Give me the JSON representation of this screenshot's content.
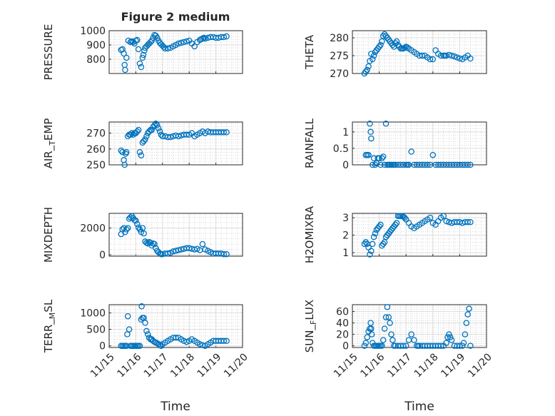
{
  "figure": {
    "title": "Figure 2 medium",
    "xlabel": "Time",
    "x_tick_labels": [
      "11/15",
      "11/16",
      "11/17",
      "11/18",
      "11/19",
      "11/20"
    ]
  },
  "chart_data": [
    {
      "type": "scatter",
      "ylabel": "PRESSURE",
      "ylim": [
        700,
        1000
      ],
      "yticks": [
        800,
        900,
        1000
      ],
      "x_range_days": [
        15,
        20
      ],
      "grid": true,
      "marker": "circle",
      "color": "#0072BD",
      "x": [
        15.45,
        15.5,
        15.55,
        15.58,
        15.6,
        15.65,
        15.72,
        15.8,
        15.85,
        15.9,
        15.95,
        16.0,
        16.05,
        16.1,
        16.15,
        16.2,
        16.25,
        16.28,
        16.32,
        16.35,
        16.4,
        16.45,
        16.5,
        16.55,
        16.6,
        16.65,
        16.7,
        16.75,
        16.8,
        16.85,
        16.9,
        16.95,
        17.0,
        17.05,
        17.1,
        17.2,
        17.3,
        17.4,
        17.5,
        17.6,
        17.7,
        17.8,
        17.9,
        18.0,
        18.1,
        18.2,
        18.3,
        18.4,
        18.45,
        18.5,
        18.55,
        18.6,
        18.7,
        18.8,
        18.9,
        19.0,
        19.1,
        19.2,
        19.3,
        19.4
      ],
      "y": [
        865,
        870,
        840,
        760,
        725,
        810,
        930,
        920,
        925,
        920,
        910,
        930,
        935,
        870,
        770,
        745,
        810,
        830,
        860,
        880,
        890,
        900,
        910,
        920,
        930,
        950,
        970,
        965,
        950,
        930,
        915,
        905,
        895,
        885,
        875,
        875,
        880,
        890,
        900,
        910,
        915,
        920,
        925,
        930,
        910,
        890,
        920,
        935,
        940,
        945,
        950,
        945,
        950,
        955,
        955,
        950,
        950,
        955,
        955,
        960
      ]
    },
    {
      "type": "scatter",
      "ylabel": "THETA",
      "ylim": [
        270,
        282
      ],
      "yticks": [
        270,
        275,
        280
      ],
      "x_range_days": [
        15,
        20
      ],
      "grid": true,
      "marker": "circle",
      "color": "#0072BD",
      "x": [
        15.45,
        15.5,
        15.55,
        15.6,
        15.65,
        15.7,
        15.75,
        15.8,
        15.85,
        15.9,
        15.95,
        16.0,
        16.05,
        16.1,
        16.15,
        16.2,
        16.25,
        16.3,
        16.35,
        16.4,
        16.45,
        16.5,
        16.55,
        16.6,
        16.65,
        16.7,
        16.75,
        16.8,
        16.85,
        16.9,
        16.95,
        17.0,
        17.05,
        17.1,
        17.2,
        17.3,
        17.4,
        17.5,
        17.6,
        17.7,
        17.8,
        17.9,
        18.0,
        18.1,
        18.2,
        18.3,
        18.4,
        18.45,
        18.5,
        18.6,
        18.7,
        18.8,
        18.9,
        19.0,
        19.1,
        19.2,
        19.3,
        19.4
      ],
      "y": [
        270,
        270.5,
        271,
        272,
        273.5,
        275.5,
        274,
        275,
        276,
        276.5,
        277,
        277.5,
        278,
        279,
        280.5,
        281,
        280.5,
        280,
        279.5,
        279,
        278.5,
        278,
        277.5,
        278.5,
        279,
        278,
        277.5,
        277,
        277,
        277,
        277.2,
        277.5,
        277.3,
        277,
        276.5,
        276,
        275.5,
        275,
        275,
        275,
        274.5,
        274,
        274,
        276.5,
        275.5,
        275,
        275,
        275,
        275,
        275.2,
        275,
        274.8,
        274.5,
        274.2,
        274,
        274.5,
        275,
        274.2
      ]
    },
    {
      "type": "scatter",
      "ylabel": "AIR_TEMP",
      "ylim": [
        250,
        277
      ],
      "yticks": [
        250,
        260,
        270
      ],
      "x_range_days": [
        15,
        20
      ],
      "grid": true,
      "marker": "circle",
      "color": "#0072BD",
      "x": [
        15.45,
        15.5,
        15.55,
        15.58,
        15.62,
        15.65,
        15.7,
        15.75,
        15.8,
        15.85,
        15.9,
        15.95,
        16.0,
        16.05,
        16.1,
        16.15,
        16.2,
        16.25,
        16.3,
        16.35,
        16.4,
        16.45,
        16.5,
        16.55,
        16.6,
        16.65,
        16.7,
        16.75,
        16.8,
        16.85,
        16.9,
        16.95,
        17.0,
        17.1,
        17.2,
        17.3,
        17.4,
        17.5,
        17.6,
        17.7,
        17.8,
        17.9,
        18.0,
        18.1,
        18.2,
        18.3,
        18.4,
        18.5,
        18.6,
        18.7,
        18.8,
        18.9,
        19.0,
        19.1,
        19.2,
        19.3,
        19.4
      ],
      "y": [
        259,
        258,
        253,
        250,
        257,
        258,
        268,
        269,
        269,
        270,
        269,
        270,
        270,
        271,
        272,
        258,
        256,
        264,
        265,
        266,
        268,
        270,
        271,
        272,
        272,
        274,
        275,
        276,
        275,
        273,
        271,
        269,
        268,
        268,
        267.5,
        267.5,
        268,
        268.5,
        268,
        268.5,
        269,
        269,
        269,
        270,
        268,
        269,
        270,
        271,
        270,
        271,
        270.5,
        270.5,
        270.5,
        270.5,
        270.5,
        270.5,
        270.5
      ]
    },
    {
      "type": "scatter",
      "ylabel": "RAINFALL",
      "ylim": [
        0,
        1.3
      ],
      "yticks": [
        0,
        0.5,
        1
      ],
      "x_range_days": [
        15,
        20
      ],
      "grid": true,
      "marker": "circle",
      "color": "#0072BD",
      "x": [
        15.5,
        15.55,
        15.6,
        15.65,
        15.68,
        15.7,
        15.75,
        15.8,
        15.85,
        15.9,
        15.95,
        16.0,
        16.05,
        16.1,
        16.15,
        16.2,
        16.25,
        16.3,
        16.35,
        16.4,
        16.45,
        16.5,
        16.55,
        16.6,
        16.7,
        16.8,
        16.9,
        17.0,
        17.05,
        17.1,
        17.2,
        17.3,
        17.4,
        17.5,
        17.6,
        17.7,
        17.8,
        17.9,
        18.0,
        18.1,
        18.2,
        18.3,
        18.4,
        18.5,
        18.6,
        18.7,
        18.8,
        18.9,
        19.0,
        19.1,
        19.2,
        19.3,
        19.4
      ],
      "y": [
        0.3,
        0.3,
        0.3,
        1.25,
        1.0,
        0.8,
        0,
        0.2,
        0,
        0.05,
        0.2,
        0.2,
        0,
        0.2,
        0.25,
        0,
        1.25,
        0,
        0,
        0,
        0,
        0,
        0,
        0,
        0,
        0,
        0,
        0,
        0,
        0,
        0.4,
        0,
        0,
        0,
        0,
        0,
        0,
        0,
        0.3,
        0,
        0,
        0,
        0,
        0,
        0,
        0,
        0,
        0,
        0,
        0,
        0,
        0,
        0
      ]
    },
    {
      "type": "scatter",
      "ylabel": "MIXDEPTH",
      "ylim": [
        -100,
        3100
      ],
      "yticks": [
        0,
        2000
      ],
      "x_range_days": [
        15,
        20
      ],
      "grid": true,
      "marker": "circle",
      "color": "#0072BD",
      "x": [
        15.45,
        15.5,
        15.55,
        15.6,
        15.65,
        15.7,
        15.75,
        15.8,
        15.85,
        15.9,
        15.95,
        16.0,
        16.05,
        16.1,
        16.15,
        16.2,
        16.25,
        16.3,
        16.35,
        16.4,
        16.45,
        16.5,
        16.55,
        16.6,
        16.65,
        16.7,
        16.75,
        16.8,
        16.85,
        16.9,
        16.95,
        17.0,
        17.1,
        17.2,
        17.3,
        17.4,
        17.5,
        17.6,
        17.7,
        17.8,
        17.9,
        18.0,
        18.1,
        18.2,
        18.3,
        18.4,
        18.5,
        18.6,
        18.7,
        18.8,
        18.9,
        19.0,
        19.1,
        19.2,
        19.3,
        19.4
      ],
      "y": [
        1550,
        1900,
        2000,
        1700,
        1900,
        2000,
        2700,
        2800,
        2900,
        2750,
        2600,
        2550,
        2300,
        2050,
        1900,
        1700,
        2000,
        1600,
        1000,
        900,
        850,
        950,
        900,
        700,
        850,
        800,
        500,
        300,
        200,
        100,
        50,
        50,
        100,
        100,
        150,
        250,
        300,
        350,
        400,
        450,
        500,
        500,
        450,
        400,
        450,
        350,
        800,
        400,
        300,
        200,
        100,
        100,
        100,
        100,
        50,
        50
      ]
    },
    {
      "type": "scatter",
      "ylabel": "H2OMIXRA",
      "ylim": [
        0.8,
        3.25
      ],
      "yticks": [
        1,
        2,
        3
      ],
      "x_range_days": [
        15,
        20
      ],
      "grid": true,
      "marker": "circle",
      "color": "#0072BD",
      "x": [
        15.45,
        15.5,
        15.55,
        15.6,
        15.65,
        15.7,
        15.75,
        15.8,
        15.85,
        15.9,
        15.95,
        16.0,
        16.05,
        16.1,
        16.15,
        16.2,
        16.25,
        16.3,
        16.35,
        16.4,
        16.45,
        16.5,
        16.55,
        16.6,
        16.65,
        16.7,
        16.75,
        16.8,
        16.85,
        16.9,
        16.95,
        17.0,
        17.1,
        17.2,
        17.3,
        17.4,
        17.5,
        17.6,
        17.7,
        17.8,
        17.9,
        18.0,
        18.1,
        18.2,
        18.3,
        18.4,
        18.5,
        18.6,
        18.7,
        18.8,
        18.9,
        19.0,
        19.1,
        19.2,
        19.3,
        19.4
      ],
      "y": [
        1.5,
        1.6,
        1.5,
        1.3,
        0.9,
        1.1,
        1.5,
        1.9,
        2.1,
        2.3,
        2.4,
        2.5,
        2.6,
        1.4,
        1.5,
        1.6,
        1.9,
        2.0,
        2.1,
        2.2,
        2.3,
        2.4,
        2.5,
        2.6,
        2.7,
        3.1,
        3.1,
        3.1,
        3.1,
        3.05,
        3.0,
        2.9,
        2.7,
        2.5,
        2.4,
        2.5,
        2.6,
        2.7,
        2.8,
        2.9,
        3.0,
        2.7,
        2.6,
        2.8,
        3.0,
        3.1,
        2.8,
        2.75,
        2.7,
        2.75,
        2.75,
        2.75,
        2.7,
        2.75,
        2.75,
        2.75
      ]
    },
    {
      "type": "scatter",
      "ylabel": "TERR_MSL",
      "ylim": [
        -50,
        1250
      ],
      "yticks": [
        0,
        500,
        1000
      ],
      "x_range_days": [
        15,
        20
      ],
      "grid": true,
      "marker": "circle",
      "color": "#0072BD",
      "x": [
        15.45,
        15.5,
        15.55,
        15.6,
        15.65,
        15.68,
        15.7,
        15.75,
        15.8,
        15.85,
        15.9,
        15.95,
        16.0,
        16.05,
        16.1,
        16.15,
        16.2,
        16.22,
        16.25,
        16.3,
        16.35,
        16.4,
        16.45,
        16.5,
        16.55,
        16.6,
        16.65,
        16.7,
        16.75,
        16.8,
        16.85,
        16.9,
        16.95,
        17.0,
        17.1,
        17.2,
        17.3,
        17.4,
        17.5,
        17.6,
        17.7,
        17.8,
        17.9,
        18.0,
        18.1,
        18.2,
        18.3,
        18.4,
        18.5,
        18.6,
        18.7,
        18.8,
        18.9,
        19.0,
        19.1,
        19.2,
        19.3,
        19.4
      ],
      "y": [
        0,
        0,
        0,
        0,
        0,
        350,
        900,
        500,
        0,
        0,
        0,
        0,
        0,
        0,
        0,
        0,
        800,
        1200,
        850,
        850,
        700,
        450,
        350,
        250,
        200,
        200,
        150,
        120,
        100,
        80,
        50,
        20,
        0,
        50,
        100,
        150,
        200,
        250,
        250,
        250,
        200,
        150,
        120,
        150,
        200,
        150,
        100,
        50,
        20,
        0,
        50,
        100,
        150,
        150,
        150,
        150,
        150,
        150
      ]
    },
    {
      "type": "scatter",
      "ylabel": "SUN_FLUX",
      "ylim": [
        -3,
        72
      ],
      "yticks": [
        0,
        20,
        40,
        60
      ],
      "x_range_days": [
        15,
        20
      ],
      "grid": true,
      "marker": "circle",
      "color": "#0072BD",
      "x": [
        15.45,
        15.5,
        15.55,
        15.6,
        15.65,
        15.68,
        15.7,
        15.72,
        15.75,
        15.8,
        15.85,
        15.9,
        15.95,
        16.0,
        16.05,
        16.1,
        16.15,
        16.2,
        16.25,
        16.3,
        16.35,
        16.4,
        16.45,
        16.5,
        16.55,
        16.6,
        16.7,
        16.8,
        16.9,
        17.0,
        17.1,
        17.2,
        17.3,
        17.4,
        17.45,
        17.5,
        17.6,
        17.7,
        17.8,
        17.9,
        18.0,
        18.1,
        18.2,
        18.3,
        18.4,
        18.5,
        18.55,
        18.6,
        18.65,
        18.7,
        18.8,
        18.9,
        19.0,
        19.1,
        19.15,
        19.2,
        19.25,
        19.3,
        19.35,
        19.4
      ],
      "y": [
        0,
        5,
        15,
        25,
        30,
        40,
        30,
        20,
        5,
        0,
        0,
        0,
        0,
        0,
        0,
        0,
        10,
        30,
        50,
        68,
        50,
        40,
        20,
        10,
        0,
        0,
        0,
        0,
        0,
        0,
        10,
        20,
        10,
        0,
        0,
        0,
        0,
        0,
        0,
        0,
        0,
        0,
        0,
        0,
        0,
        5,
        15,
        20,
        15,
        10,
        0,
        0,
        0,
        0,
        5,
        20,
        40,
        55,
        65,
        0
      ]
    }
  ]
}
